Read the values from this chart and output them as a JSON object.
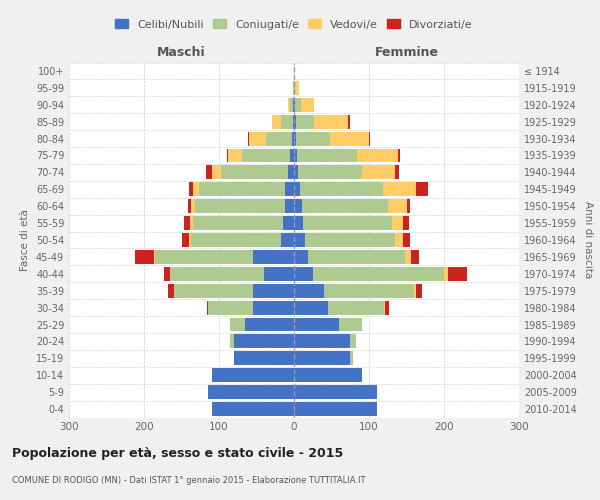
{
  "age_groups": [
    "0-4",
    "5-9",
    "10-14",
    "15-19",
    "20-24",
    "25-29",
    "30-34",
    "35-39",
    "40-44",
    "45-49",
    "50-54",
    "55-59",
    "60-64",
    "65-69",
    "70-74",
    "75-79",
    "80-84",
    "85-89",
    "90-94",
    "95-99",
    "100+"
  ],
  "birth_years": [
    "2010-2014",
    "2005-2009",
    "2000-2004",
    "1995-1999",
    "1990-1994",
    "1985-1989",
    "1980-1984",
    "1975-1979",
    "1970-1974",
    "1965-1969",
    "1960-1964",
    "1955-1959",
    "1950-1954",
    "1945-1949",
    "1940-1944",
    "1935-1939",
    "1930-1934",
    "1925-1929",
    "1920-1924",
    "1915-1919",
    "≤ 1914"
  ],
  "males": {
    "celibi": [
      110,
      115,
      110,
      80,
      80,
      65,
      55,
      55,
      40,
      55,
      18,
      15,
      12,
      12,
      8,
      5,
      3,
      2,
      1,
      0,
      0
    ],
    "coniugati": [
      0,
      0,
      0,
      0,
      5,
      20,
      60,
      105,
      125,
      130,
      120,
      120,
      120,
      115,
      90,
      65,
      35,
      15,
      5,
      1,
      0
    ],
    "vedovi": [
      0,
      0,
      0,
      0,
      0,
      0,
      0,
      0,
      1,
      2,
      2,
      4,
      5,
      8,
      12,
      18,
      22,
      12,
      2,
      0,
      0
    ],
    "divorziati": [
      0,
      0,
      0,
      0,
      0,
      0,
      1,
      8,
      8,
      25,
      10,
      8,
      5,
      5,
      8,
      2,
      1,
      0,
      0,
      0,
      0
    ]
  },
  "females": {
    "nubili": [
      110,
      110,
      90,
      75,
      75,
      60,
      45,
      40,
      25,
      18,
      15,
      12,
      10,
      8,
      5,
      4,
      3,
      2,
      1,
      0,
      0
    ],
    "coniugate": [
      0,
      0,
      0,
      3,
      8,
      30,
      75,
      120,
      175,
      130,
      120,
      118,
      115,
      110,
      85,
      80,
      45,
      25,
      8,
      1,
      0
    ],
    "vedove": [
      0,
      0,
      0,
      0,
      0,
      0,
      1,
      2,
      5,
      8,
      10,
      15,
      25,
      45,
      45,
      55,
      52,
      45,
      18,
      5,
      0
    ],
    "divorziate": [
      0,
      0,
      0,
      0,
      0,
      1,
      5,
      8,
      25,
      10,
      10,
      8,
      5,
      15,
      5,
      2,
      1,
      2,
      0,
      0,
      0
    ]
  },
  "colors": {
    "celibi": "#4472C4",
    "coniugati": "#AECA91",
    "vedovi": "#FFCC66",
    "divorziati": "#CC2222"
  },
  "title": "Popolazione per età, sesso e stato civile - 2015",
  "subtitle": "COMUNE DI RODIGO (MN) - Dati ISTAT 1° gennaio 2015 - Elaborazione TUTTITALIA.IT",
  "ylabel_left": "Fasce di età",
  "ylabel_right": "Anni di nascita",
  "xlabel_left": "Maschi",
  "xlabel_right": "Femmine",
  "xlim": 300,
  "legend_labels": [
    "Celibi/Nubili",
    "Coniugati/e",
    "Vedovi/e",
    "Divorziati/e"
  ],
  "bg_color": "#f0f0f0",
  "plot_bg_color": "#ffffff"
}
